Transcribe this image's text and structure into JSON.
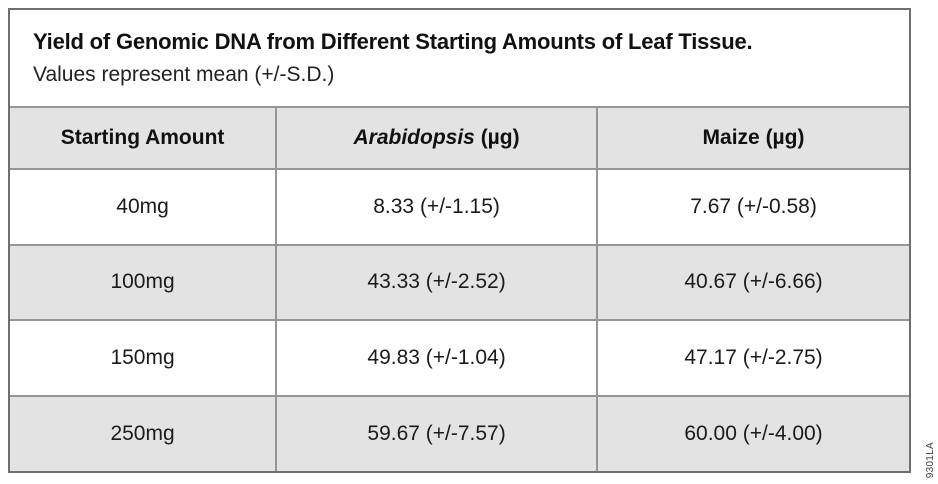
{
  "figure": {
    "title": "Yield of Genomic DNA from Different Starting Amounts of Leaf Tissue.",
    "subtitle": "Values represent mean (+/-S.D.)",
    "figure_code": "9301LA"
  },
  "table": {
    "header": {
      "starting_amount": "Starting Amount",
      "arabidopsis_name": "Arabidopsis",
      "arabidopsis_unit": " (µg)",
      "maize": "Maize (µg)"
    },
    "rows": [
      {
        "starting_amount": "40mg",
        "arabidopsis": "8.33 (+/-1.15)",
        "maize": "7.67 (+/-0.58)"
      },
      {
        "starting_amount": "100mg",
        "arabidopsis": "43.33 (+/-2.52)",
        "maize": "40.67 (+/-6.66)"
      },
      {
        "starting_amount": "150mg",
        "arabidopsis": "49.83 (+/-1.04)",
        "maize": "47.17 (+/-2.75)"
      },
      {
        "starting_amount": "250mg",
        "arabidopsis": "59.67 (+/-7.57)",
        "maize": "60.00 (+/-4.00)"
      }
    ]
  },
  "colors": {
    "row_shade": "#e3e3e3",
    "grid_line": "#969696",
    "frame_border": "#6f6f6f",
    "text": "#1b1b1b",
    "background": "#ffffff"
  }
}
